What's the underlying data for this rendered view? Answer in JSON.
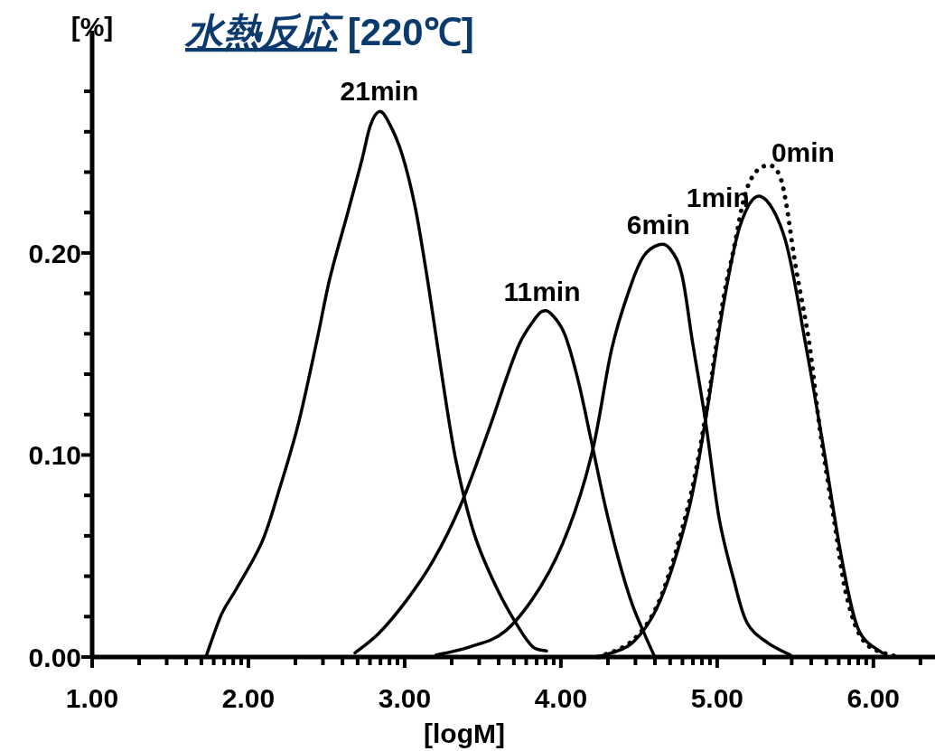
{
  "chart_data": {
    "type": "line",
    "title": "*水熱反応* [220℃]",
    "xlabel": "[logM]",
    "ylabel": "[%]",
    "xlim": [
      1,
      6.4
    ],
    "ylim": [
      0,
      0.31
    ],
    "grid": false,
    "marker": "none",
    "xticks": [
      {
        "value": 1,
        "label": "1.00"
      },
      {
        "value": 1.301,
        "label": null
      },
      {
        "value": 1.477,
        "label": null
      },
      {
        "value": 1.602,
        "label": null
      },
      {
        "value": 1.699,
        "label": null
      },
      {
        "value": 1.778,
        "label": null
      },
      {
        "value": 1.845,
        "label": null
      },
      {
        "value": 1.903,
        "label": null
      },
      {
        "value": 1.954,
        "label": null
      },
      {
        "value": 2,
        "label": "2.00"
      },
      {
        "value": 2.301,
        "label": null
      },
      {
        "value": 2.477,
        "label": null
      },
      {
        "value": 2.602,
        "label": null
      },
      {
        "value": 2.699,
        "label": null
      },
      {
        "value": 2.778,
        "label": null
      },
      {
        "value": 2.845,
        "label": null
      },
      {
        "value": 2.903,
        "label": null
      },
      {
        "value": 2.954,
        "label": null
      },
      {
        "value": 3,
        "label": "3.00"
      },
      {
        "value": 3.301,
        "label": null
      },
      {
        "value": 3.477,
        "label": null
      },
      {
        "value": 3.602,
        "label": null
      },
      {
        "value": 3.699,
        "label": null
      },
      {
        "value": 3.778,
        "label": null
      },
      {
        "value": 3.845,
        "label": null
      },
      {
        "value": 3.903,
        "label": null
      },
      {
        "value": 3.954,
        "label": null
      },
      {
        "value": 4,
        "label": "4.00"
      },
      {
        "value": 4.301,
        "label": null
      },
      {
        "value": 4.477,
        "label": null
      },
      {
        "value": 4.602,
        "label": null
      },
      {
        "value": 4.699,
        "label": null
      },
      {
        "value": 4.778,
        "label": null
      },
      {
        "value": 4.845,
        "label": null
      },
      {
        "value": 4.903,
        "label": null
      },
      {
        "value": 4.954,
        "label": null
      },
      {
        "value": 5,
        "label": "5.00"
      },
      {
        "value": 5.301,
        "label": null
      },
      {
        "value": 5.477,
        "label": null
      },
      {
        "value": 5.602,
        "label": null
      },
      {
        "value": 5.699,
        "label": null
      },
      {
        "value": 5.778,
        "label": null
      },
      {
        "value": 5.845,
        "label": null
      },
      {
        "value": 5.903,
        "label": null
      },
      {
        "value": 5.954,
        "label": null
      },
      {
        "value": 6,
        "label": "6.00"
      },
      {
        "value": 6.301,
        "label": null
      }
    ],
    "yticks": [
      {
        "value": 0,
        "label": "0.00"
      },
      {
        "value": 0.02,
        "label": null
      },
      {
        "value": 0.04,
        "label": null
      },
      {
        "value": 0.06,
        "label": null
      },
      {
        "value": 0.08,
        "label": null
      },
      {
        "value": 0.1,
        "label": "0.10"
      },
      {
        "value": 0.12,
        "label": null
      },
      {
        "value": 0.14,
        "label": null
      },
      {
        "value": 0.16,
        "label": null
      },
      {
        "value": 0.18,
        "label": null
      },
      {
        "value": 0.2,
        "label": "0.20"
      },
      {
        "value": 0.22,
        "label": null
      },
      {
        "value": 0.24,
        "label": null
      },
      {
        "value": 0.26,
        "label": null
      },
      {
        "value": 0.28,
        "label": null
      }
    ],
    "series": [
      {
        "name": "21min",
        "color": "#000000",
        "line_style": "solid",
        "x": [
          1.728,
          1.827,
          1.925,
          2.087,
          2.202,
          2.318,
          2.434,
          2.52,
          2.636,
          2.723,
          2.78,
          2.838,
          2.896,
          2.983,
          3.069,
          3.156,
          3.243,
          3.329,
          3.445,
          3.59,
          3.734,
          3.821,
          3.908
        ],
        "values": [
          0,
          0.021,
          0.034,
          0.057,
          0.084,
          0.115,
          0.155,
          0.187,
          0.22,
          0.245,
          0.263,
          0.27,
          0.265,
          0.249,
          0.222,
          0.182,
          0.137,
          0.097,
          0.061,
          0.034,
          0.014,
          0.005,
          0.003
        ]
      },
      {
        "name": "11min",
        "color": "#000000",
        "line_style": "solid",
        "x": [
          2.682,
          2.838,
          3.012,
          3.185,
          3.358,
          3.532,
          3.647,
          3.734,
          3.821,
          3.879,
          3.936,
          4.023,
          4.11,
          4.197,
          4.283,
          4.37,
          4.457,
          4.543,
          4.601
        ],
        "values": [
          0.002,
          0.012,
          0.028,
          0.048,
          0.075,
          0.111,
          0.137,
          0.155,
          0.166,
          0.171,
          0.17,
          0.16,
          0.137,
          0.106,
          0.075,
          0.048,
          0.026,
          0.01,
          0
        ]
      },
      {
        "name": "6min",
        "color": "#000000",
        "line_style": "solid",
        "x": [
          3.202,
          3.416,
          3.647,
          3.879,
          4.052,
          4.202,
          4.324,
          4.434,
          4.526,
          4.624,
          4.699,
          4.775,
          4.844,
          4.925,
          5.012,
          5.104,
          5.191,
          5.324,
          5.468
        ],
        "values": [
          0.001,
          0.005,
          0.013,
          0.036,
          0.064,
          0.102,
          0.152,
          0.181,
          0.198,
          0.204,
          0.202,
          0.189,
          0.155,
          0.117,
          0.069,
          0.039,
          0.017,
          0.007,
          0.001
        ]
      },
      {
        "name": "1min",
        "color": "#000000",
        "line_style": "solid",
        "x": [
          4.237,
          4.457,
          4.636,
          4.815,
          4.925,
          5.035,
          5.145,
          5.277,
          5.434,
          5.566,
          5.682,
          5.792,
          5.902,
          6.058
        ],
        "values": [
          0,
          0.007,
          0.028,
          0.072,
          0.117,
          0.172,
          0.213,
          0.228,
          0.207,
          0.155,
          0.103,
          0.051,
          0.014,
          0.002
        ]
      },
      {
        "name": "0min",
        "color": "#000000",
        "line_style": "dotted",
        "x": [
          4.237,
          4.457,
          4.636,
          4.815,
          4.925,
          5.035,
          5.104,
          5.191,
          5.301,
          5.41,
          5.503,
          5.59,
          5.659,
          5.746,
          5.832,
          5.948,
          6.156
        ],
        "values": [
          0,
          0.008,
          0.029,
          0.075,
          0.119,
          0.175,
          0.201,
          0.232,
          0.243,
          0.236,
          0.193,
          0.155,
          0.112,
          0.069,
          0.029,
          0.007,
          0
        ]
      }
    ]
  }
}
